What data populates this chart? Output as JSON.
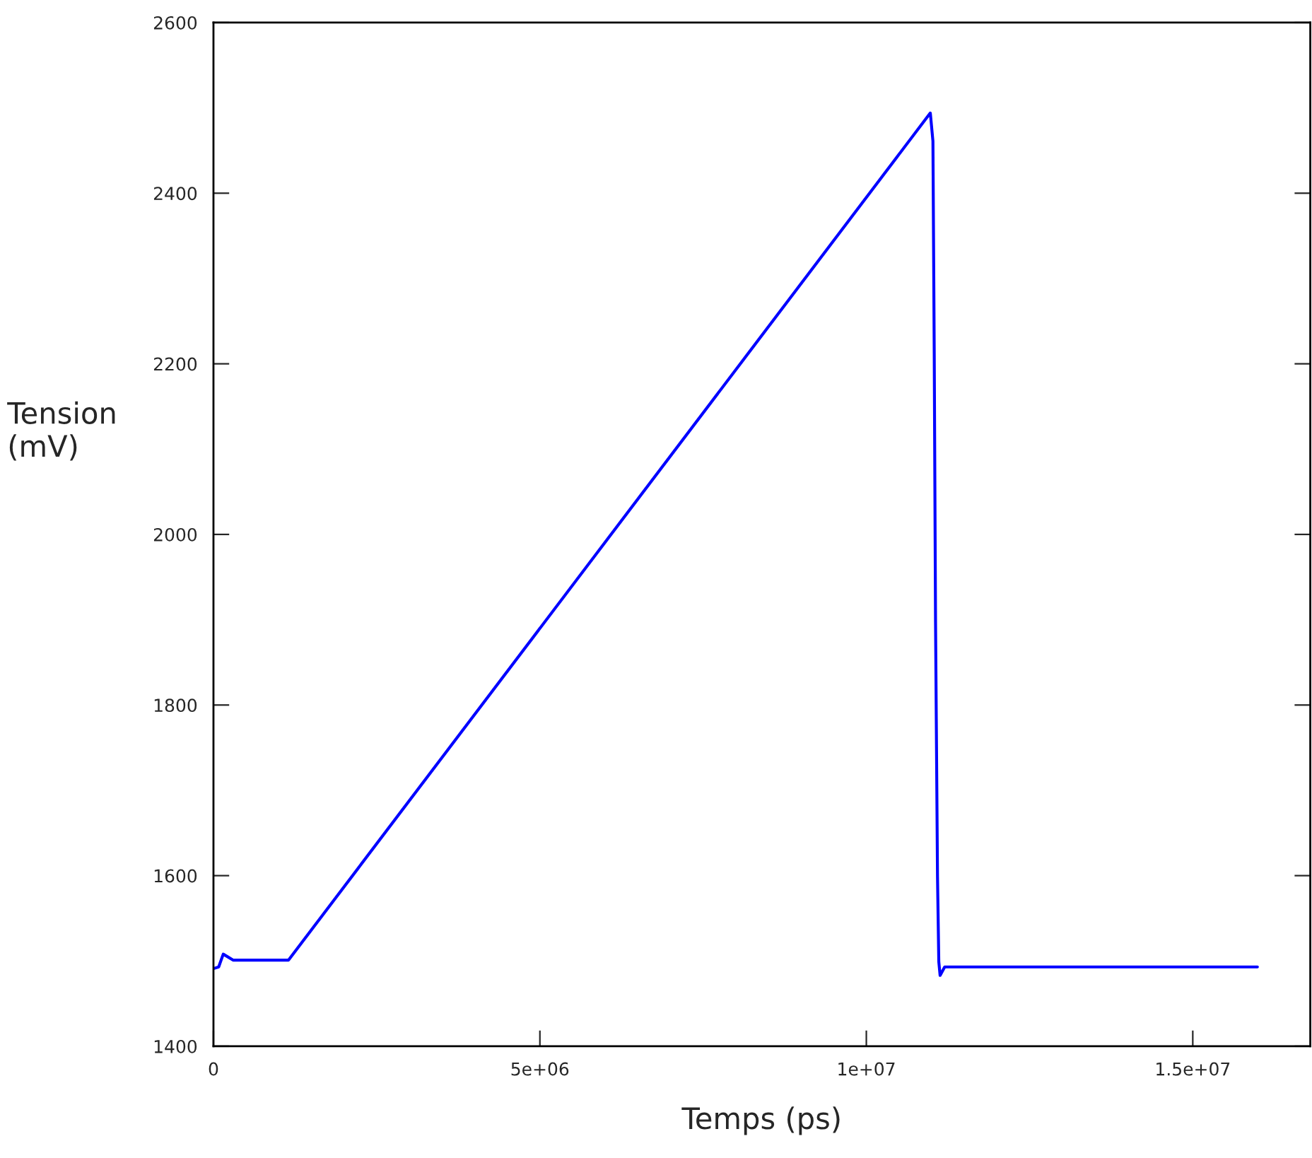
{
  "chart_data": {
    "type": "line",
    "xlabel": "Temps (ps)",
    "ylabel": "Tension\n(mV)",
    "x": [
      0,
      80000,
      150000,
      300000,
      1150000,
      10980000,
      11020000,
      11040000,
      11060000,
      11090000,
      11110000,
      11130000,
      11200000,
      11300000,
      13000000,
      15990000
    ],
    "series": [
      {
        "color": "#0000ff",
        "values": [
          1491,
          1493,
          1508,
          1501,
          1501,
          2494,
          2461,
          2212,
          1897,
          1599,
          1499,
          1483,
          1493,
          1493,
          1493,
          1493
        ]
      }
    ],
    "xlim": [
      0,
      16800000
    ],
    "xticks": [
      0,
      {
        "value": 5000000,
        "label": "5e+06"
      },
      {
        "value": 10000000,
        "label": "1e+07"
      },
      {
        "value": 15000000,
        "label": "1.5e+07"
      }
    ],
    "ylim": [
      1400,
      2600
    ],
    "yticks": [
      1400,
      1600,
      1800,
      2000,
      2200,
      2400,
      2600
    ],
    "grid": false,
    "legend": false,
    "marker": "none",
    "line_style": "solid"
  }
}
